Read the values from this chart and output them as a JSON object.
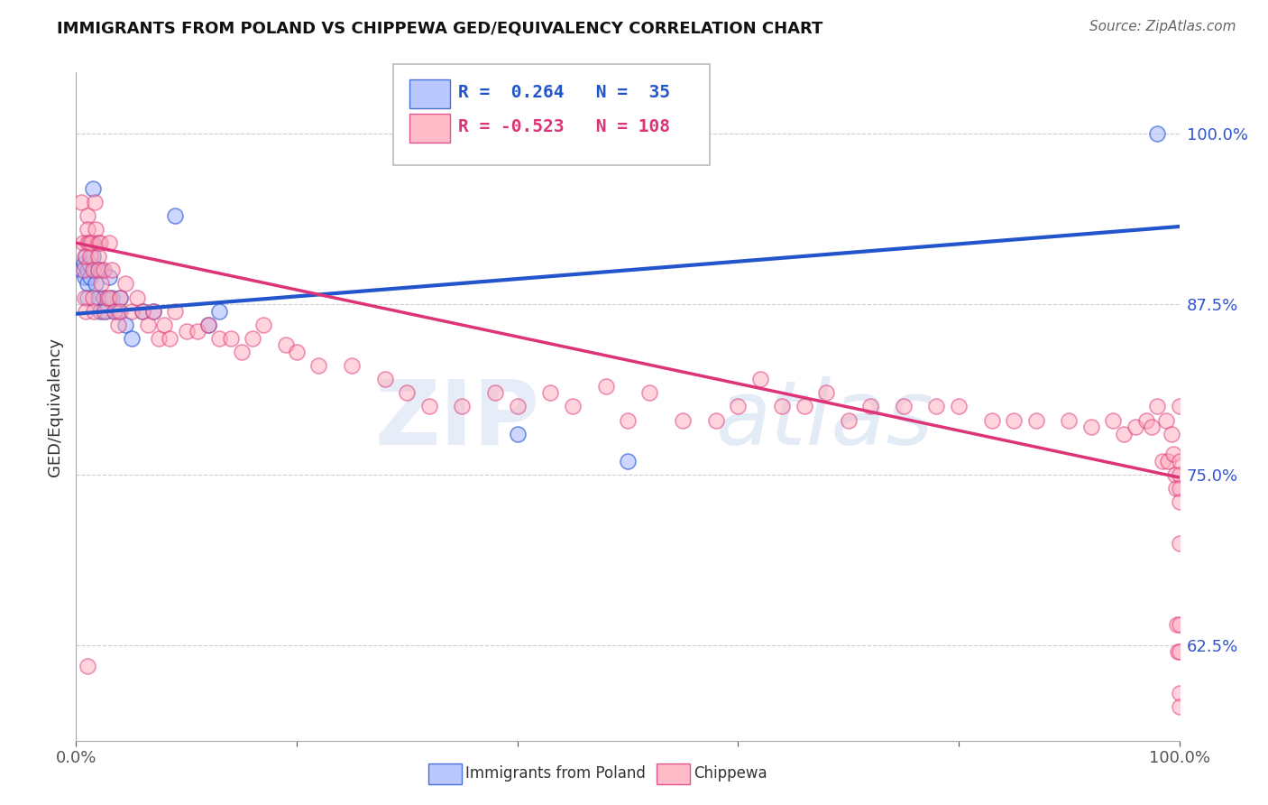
{
  "title": "IMMIGRANTS FROM POLAND VS CHIPPEWA GED/EQUIVALENCY CORRELATION CHART",
  "source": "Source: ZipAtlas.com",
  "ylabel": "GED/Equivalency",
  "blue_R": 0.264,
  "blue_N": 35,
  "pink_R": -0.523,
  "pink_N": 108,
  "blue_color": "#aabbff",
  "pink_color": "#ffaabb",
  "blue_line_color": "#2255cc",
  "pink_line_color": "#dd3377",
  "xlim": [
    0.0,
    1.0
  ],
  "ylim": [
    0.555,
    1.045
  ],
  "yticks": [
    0.625,
    0.75,
    0.875,
    1.0
  ],
  "ytick_labels": [
    "62.5%",
    "75.0%",
    "87.5%",
    "100.0%"
  ],
  "xticks": [
    0.0,
    0.2,
    0.4,
    0.6,
    0.8,
    1.0
  ],
  "xtick_labels": [
    "0.0%",
    "",
    "",
    "",
    "",
    "100.0%"
  ],
  "watermark_zip": "ZIP",
  "watermark_atlas": "atlas",
  "blue_line_x0": 0.0,
  "blue_line_y0": 0.868,
  "blue_line_x1": 1.0,
  "blue_line_y1": 0.932,
  "pink_line_x0": 0.0,
  "pink_line_y0": 0.92,
  "pink_line_x1": 1.0,
  "pink_line_y1": 0.748,
  "blue_x": [
    0.005,
    0.007,
    0.008,
    0.009,
    0.01,
    0.01,
    0.01,
    0.012,
    0.013,
    0.015,
    0.015,
    0.015,
    0.017,
    0.018,
    0.02,
    0.02,
    0.022,
    0.023,
    0.025,
    0.027,
    0.03,
    0.032,
    0.035,
    0.038,
    0.04,
    0.045,
    0.05,
    0.06,
    0.07,
    0.09,
    0.12,
    0.13,
    0.4,
    0.5,
    0.98
  ],
  "blue_y": [
    0.9,
    0.905,
    0.895,
    0.91,
    0.9,
    0.89,
    0.88,
    0.905,
    0.895,
    0.92,
    0.91,
    0.96,
    0.9,
    0.89,
    0.9,
    0.88,
    0.87,
    0.9,
    0.88,
    0.87,
    0.895,
    0.88,
    0.87,
    0.87,
    0.88,
    0.86,
    0.85,
    0.87,
    0.87,
    0.94,
    0.86,
    0.87,
    0.78,
    0.76,
    1.0
  ],
  "pink_x": [
    0.005,
    0.006,
    0.007,
    0.008,
    0.008,
    0.009,
    0.01,
    0.01,
    0.01,
    0.01,
    0.012,
    0.013,
    0.014,
    0.015,
    0.015,
    0.016,
    0.017,
    0.018,
    0.02,
    0.02,
    0.02,
    0.022,
    0.023,
    0.025,
    0.025,
    0.028,
    0.03,
    0.03,
    0.032,
    0.035,
    0.038,
    0.04,
    0.04,
    0.045,
    0.05,
    0.055,
    0.06,
    0.065,
    0.07,
    0.075,
    0.08,
    0.085,
    0.09,
    0.1,
    0.11,
    0.12,
    0.13,
    0.14,
    0.15,
    0.16,
    0.17,
    0.19,
    0.2,
    0.22,
    0.25,
    0.28,
    0.3,
    0.32,
    0.35,
    0.38,
    0.4,
    0.43,
    0.45,
    0.48,
    0.5,
    0.52,
    0.55,
    0.58,
    0.6,
    0.62,
    0.64,
    0.66,
    0.68,
    0.7,
    0.72,
    0.75,
    0.78,
    0.8,
    0.83,
    0.85,
    0.87,
    0.9,
    0.92,
    0.94,
    0.95,
    0.96,
    0.97,
    0.975,
    0.98,
    0.985,
    0.988,
    0.99,
    0.993,
    0.995,
    0.996,
    0.997,
    0.998,
    0.999,
    1.0,
    1.0,
    1.0,
    1.0,
    1.0,
    1.0,
    1.0,
    1.0,
    1.0,
    1.0
  ],
  "pink_y": [
    0.95,
    0.92,
    0.9,
    0.91,
    0.88,
    0.87,
    0.94,
    0.93,
    0.92,
    0.61,
    0.92,
    0.91,
    0.92,
    0.9,
    0.88,
    0.87,
    0.95,
    0.93,
    0.92,
    0.91,
    0.9,
    0.92,
    0.89,
    0.9,
    0.87,
    0.88,
    0.92,
    0.88,
    0.9,
    0.87,
    0.86,
    0.88,
    0.87,
    0.89,
    0.87,
    0.88,
    0.87,
    0.86,
    0.87,
    0.85,
    0.86,
    0.85,
    0.87,
    0.855,
    0.855,
    0.86,
    0.85,
    0.85,
    0.84,
    0.85,
    0.86,
    0.845,
    0.84,
    0.83,
    0.83,
    0.82,
    0.81,
    0.8,
    0.8,
    0.81,
    0.8,
    0.81,
    0.8,
    0.815,
    0.79,
    0.81,
    0.79,
    0.79,
    0.8,
    0.82,
    0.8,
    0.8,
    0.81,
    0.79,
    0.8,
    0.8,
    0.8,
    0.8,
    0.79,
    0.79,
    0.79,
    0.79,
    0.785,
    0.79,
    0.78,
    0.785,
    0.79,
    0.785,
    0.8,
    0.76,
    0.79,
    0.76,
    0.78,
    0.765,
    0.75,
    0.74,
    0.64,
    0.62,
    0.8,
    0.76,
    0.75,
    0.74,
    0.73,
    0.7,
    0.64,
    0.62,
    0.59,
    0.58
  ]
}
